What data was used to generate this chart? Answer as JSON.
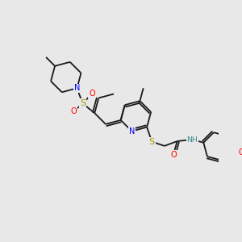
{
  "background_color": "#e8e8e8",
  "bond_color": "#1a1a1a",
  "atom_colors": {
    "N": "#0000ff",
    "O": "#ff0000",
    "S": "#999900",
    "NH": "#3a8a8a",
    "C": "#1a1a1a"
  },
  "lw": 1.3,
  "fs": 6.5,
  "figsize": [
    3.0,
    3.0
  ],
  "dpi": 100
}
